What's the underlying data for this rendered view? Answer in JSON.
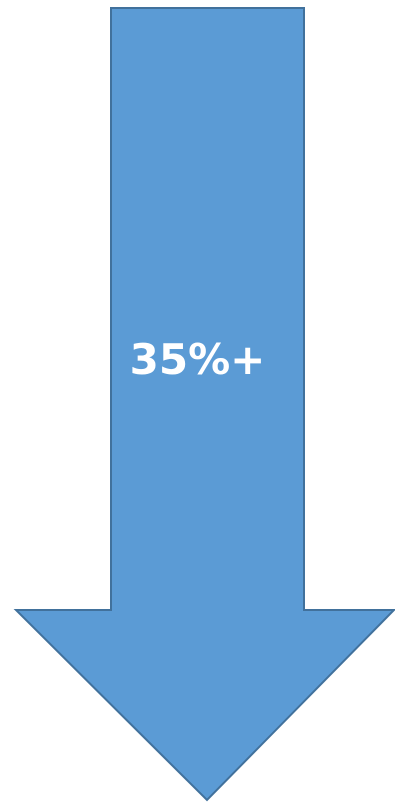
{
  "arrow": {
    "label": "35%+",
    "direction": "down",
    "fill_color": "#5b9bd5",
    "stroke_color": "#41719c",
    "text_color": "#ffffff"
  }
}
